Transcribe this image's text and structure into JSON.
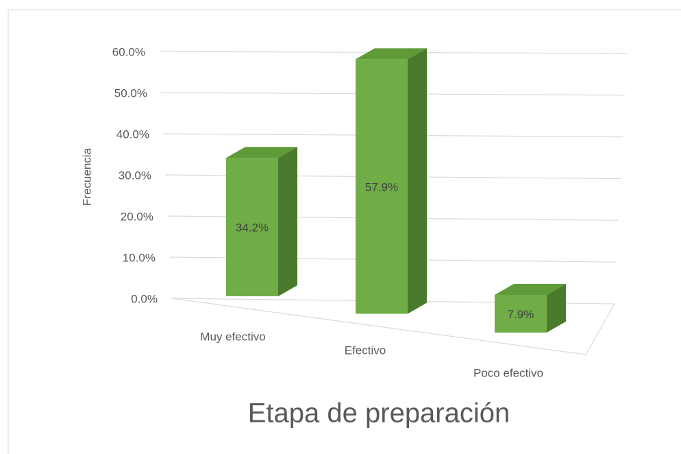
{
  "chart_data": {
    "type": "bar3d",
    "categories": [
      "Muy efectivo",
      "Efectivo",
      "Poco efectivo"
    ],
    "values": [
      34.2,
      57.9,
      7.9
    ],
    "value_labels": [
      "34.2%",
      "57.9%",
      "7.9%"
    ],
    "color": "#70ad47",
    "ylim": [
      0,
      60
    ],
    "yticks": [
      {
        "value": 0,
        "label": "0.0%"
      },
      {
        "value": 10,
        "label": "10.0%"
      },
      {
        "value": 20,
        "label": "20.0%"
      },
      {
        "value": 30,
        "label": "30.0%"
      },
      {
        "value": 40,
        "label": "40.0%"
      },
      {
        "value": 50,
        "label": "50.0%"
      },
      {
        "value": 60,
        "label": "60.0%"
      }
    ],
    "y_label": "Frecuencia",
    "x_label": "Etapa de preparación",
    "grid": true
  }
}
